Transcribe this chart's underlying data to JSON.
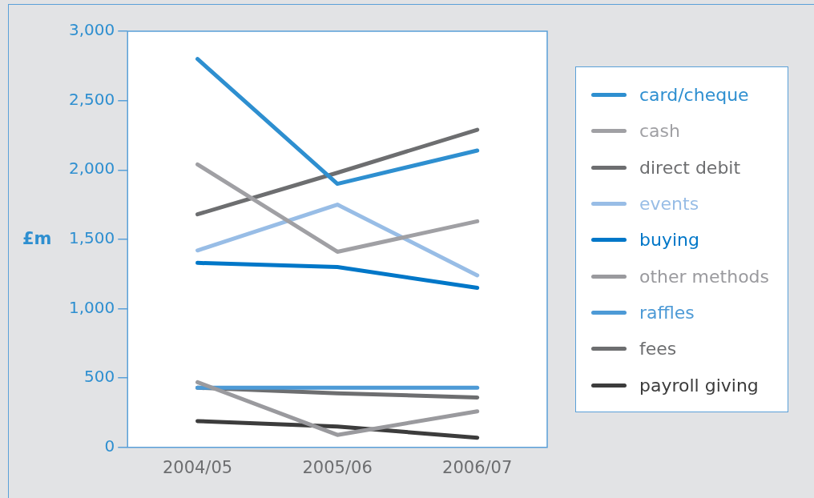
{
  "chart_data": {
    "type": "line",
    "ylabel": "£m",
    "categories": [
      "2004/05",
      "2005/06",
      "2006/07"
    ],
    "ylim": [
      0,
      3000
    ],
    "yticks": [
      0,
      500,
      {
        "value": 1000,
        "label": "1,000"
      },
      {
        "value": 1500,
        "label": "1,500"
      },
      {
        "value": 2000,
        "label": "2,000"
      },
      {
        "value": 2500,
        "label": "2,500"
      },
      {
        "value": 3000,
        "label": "3,000"
      }
    ],
    "grid": false,
    "legend": "right",
    "marker": "none",
    "line_style": "solid",
    "series": [
      {
        "name": "card/cheque",
        "color": "#2e8fd0",
        "values": [
          2800,
          1900,
          2140
        ]
      },
      {
        "name": "cash",
        "color": "#a0a0a4",
        "values": [
          2040,
          1410,
          1630
        ]
      },
      {
        "name": "direct debit",
        "color": "#6d6e70",
        "values": [
          1680,
          1980,
          2290
        ]
      },
      {
        "name": "events",
        "color": "#98bde6",
        "values": [
          1420,
          1750,
          1240
        ]
      },
      {
        "name": "buying",
        "color": "#0077c8",
        "values": [
          1330,
          1300,
          1150
        ]
      },
      {
        "name": "other methods",
        "color": "#9a9a9e",
        "values": [
          470,
          90,
          260
        ]
      },
      {
        "name": "raffles",
        "color": "#4d9ad6",
        "values": [
          430,
          430,
          430
        ]
      },
      {
        "name": "fees",
        "color": "#6d6e70",
        "values": [
          430,
          390,
          360
        ]
      },
      {
        "name": "payroll giving",
        "color": "#3c3c3c",
        "values": [
          190,
          150,
          70
        ]
      }
    ]
  }
}
